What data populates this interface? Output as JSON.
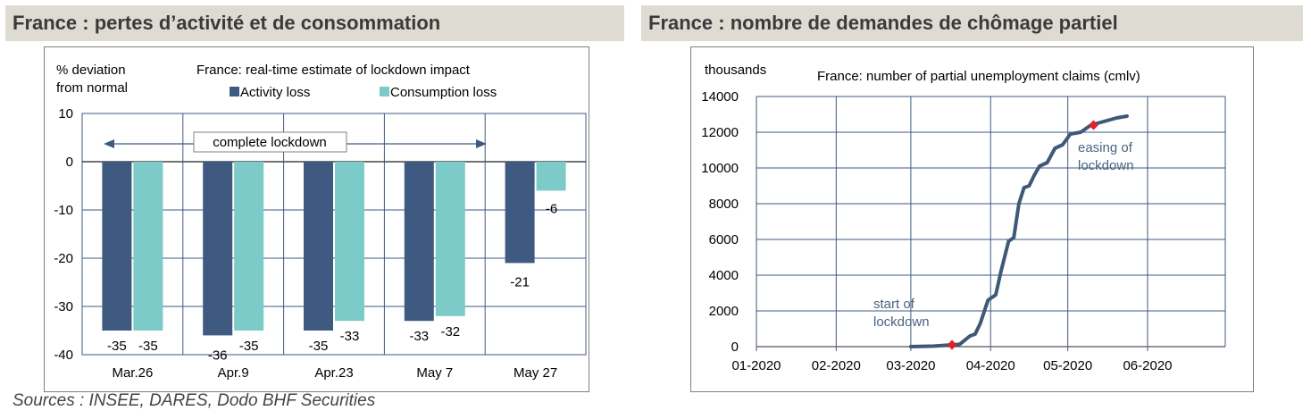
{
  "headers": {
    "left": "France : pertes d’activité et de consommation",
    "right": "France : nombre de demandes de chômage partiel"
  },
  "source": "Sources : INSEE, DARES, Dodo BHF Securities",
  "left_chart": {
    "ylabel_line1": "% deviation",
    "ylabel_line2": "from normal",
    "annotation": "complete lockdown"
  },
  "right_chart": {
    "annotations": {
      "start_line1": "start of",
      "start_line2": "lockdown",
      "easing_line1": "easing of",
      "easing_line2": "lockdown"
    }
  },
  "colors": {
    "activity": "#3f5a80",
    "consumption": "#7ccbc8",
    "line": "#3e5878",
    "marker": "#e0202b",
    "annotation_text": "#4a6380",
    "header_bg": "#dedbd2"
  },
  "chart_data": [
    {
      "type": "bar",
      "title": "France: real-time estimate of lockdown impact",
      "ylabel": "% deviation from normal",
      "categories": [
        "Mar.26",
        "Apr.9",
        "Apr.23",
        "May 7",
        "May 27"
      ],
      "series": [
        {
          "name": "Activity loss",
          "values": [
            -35,
            -36,
            -35,
            -33,
            -21
          ]
        },
        {
          "name": "Consumption loss",
          "values": [
            -35,
            -35,
            -33,
            -32,
            -6
          ]
        }
      ],
      "data_labels": {
        "Activity loss": [
          "-35",
          "-36",
          "-35",
          "-33",
          "-21"
        ],
        "Consumption loss": [
          "-35",
          "-35",
          "-33",
          "-32",
          "-6"
        ]
      },
      "ylim": [
        -40,
        10
      ],
      "yticks": [
        10,
        0,
        -10,
        -20,
        -30,
        -40
      ],
      "grid": true,
      "legend": "top"
    },
    {
      "type": "line",
      "title": "France: number of partial unemployment claims (cmlv)",
      "ylabel": "thousands",
      "xticks": [
        "01-2020",
        "02-2020",
        "03-2020",
        "04-2020",
        "05-2020",
        "06-2020"
      ],
      "yticks": [
        0,
        2000,
        4000,
        6000,
        8000,
        10000,
        12000,
        14000
      ],
      "ylim": [
        0,
        14000
      ],
      "grid": true,
      "series": [
        {
          "x": [
            "2020-03-01",
            "2020-03-10",
            "2020-03-17",
            "2020-03-20",
            "2020-03-24",
            "2020-03-26",
            "2020-03-28",
            "2020-03-31",
            "2020-04-03",
            "2020-04-05",
            "2020-04-08",
            "2020-04-10",
            "2020-04-12",
            "2020-04-14",
            "2020-04-16",
            "2020-04-18",
            "2020-04-20",
            "2020-04-23",
            "2020-04-26",
            "2020-04-29",
            "2020-05-02",
            "2020-05-06",
            "2020-05-10",
            "2020-05-15",
            "2020-05-20",
            "2020-05-24"
          ],
          "y": [
            0,
            30,
            100,
            130,
            600,
            700,
            1300,
            2600,
            2900,
            4200,
            5900,
            6100,
            8000,
            8900,
            9000,
            9600,
            10100,
            10300,
            11100,
            11300,
            11900,
            12000,
            12400,
            12600,
            12800,
            12900
          ]
        }
      ],
      "markers": [
        {
          "x": "2020-03-17",
          "y": 100
        },
        {
          "x": "2020-05-11",
          "y": 12400
        }
      ]
    }
  ]
}
